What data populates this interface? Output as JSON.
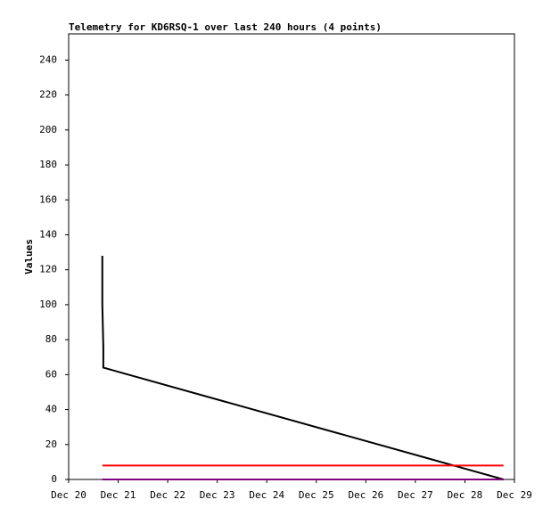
{
  "chart_data": {
    "type": "line",
    "title": "Telemetry for KD6RSQ-1 over last 240 hours (4 points)",
    "y_label": "Values",
    "xlim": [
      20,
      29
    ],
    "xticks": [
      {
        "value": 20,
        "label": "Dec 20"
      },
      {
        "value": 21,
        "label": "Dec 21"
      },
      {
        "value": 22,
        "label": "Dec 22"
      },
      {
        "value": 23,
        "label": "Dec 23"
      },
      {
        "value": 24,
        "label": "Dec 24"
      },
      {
        "value": 25,
        "label": "Dec 25"
      },
      {
        "value": 26,
        "label": "Dec 26"
      },
      {
        "value": 27,
        "label": "Dec 27"
      },
      {
        "value": 28,
        "label": "Dec 28"
      },
      {
        "value": 29,
        "label": "Dec 29"
      }
    ],
    "ylim": [
      0,
      255
    ],
    "yticks": [
      0,
      20,
      40,
      60,
      80,
      100,
      120,
      140,
      160,
      180,
      200,
      220,
      240
    ],
    "series": [
      {
        "color": "#000000",
        "x": [
          20.68,
          20.68,
          20.7,
          20.7,
          28.78
        ],
        "values": [
          128,
          100,
          76,
          64,
          0
        ]
      },
      {
        "color": "#ff0000",
        "x": [
          20.68,
          28.78
        ],
        "values": [
          8,
          8
        ]
      },
      {
        "color": "#800080",
        "x": [
          20.68,
          28.78
        ],
        "values": [
          0,
          0
        ]
      }
    ]
  }
}
